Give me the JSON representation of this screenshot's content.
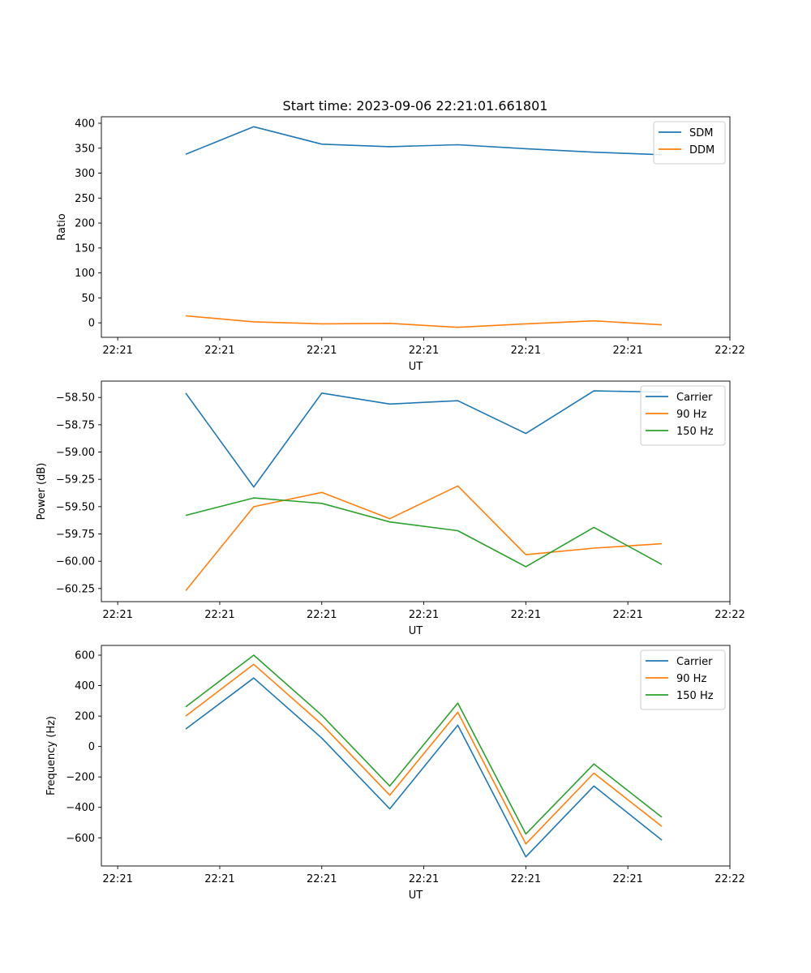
{
  "title": "Start time: 2023-09-06 22:21:01.661801",
  "colors": {
    "blue": "#1f77b4",
    "orange": "#ff7f0e",
    "green": "#2ca02c"
  },
  "chart_data": [
    {
      "type": "line",
      "ylabel": "Ratio",
      "xlabel": "UT",
      "x": [
        0.5,
        1.0,
        1.5,
        2.0,
        2.5,
        3.0,
        3.5,
        4.0
      ],
      "xlim": [
        -0.12,
        4.5
      ],
      "xticks": [
        0,
        0.75,
        1.5,
        2.25,
        3.0,
        3.75,
        4.5
      ],
      "xtick_labels": [
        "22:21",
        "22:21",
        "22:21",
        "22:21",
        "22:21",
        "22:21",
        "22:22"
      ],
      "ylim": [
        -29,
        413
      ],
      "yticks": [
        0,
        50,
        100,
        150,
        200,
        250,
        300,
        350,
        400
      ],
      "ytick_labels": [
        "0",
        "50",
        "100",
        "150",
        "200",
        "250",
        "300",
        "350",
        "400"
      ],
      "legend_position": "top-right",
      "series": [
        {
          "name": "SDM",
          "color": "#1f77b4",
          "values": [
            338,
            393,
            358,
            353,
            357,
            349,
            342,
            337
          ]
        },
        {
          "name": "DDM",
          "color": "#ff7f0e",
          "values": [
            14,
            2,
            -2,
            -1,
            -9,
            -2,
            4,
            -4
          ]
        }
      ]
    },
    {
      "type": "line",
      "ylabel": "Power (dB)",
      "xlabel": "UT",
      "x": [
        0.5,
        1.0,
        1.5,
        2.0,
        2.5,
        3.0,
        3.5,
        4.0
      ],
      "xlim": [
        -0.12,
        4.5
      ],
      "xticks": [
        0,
        0.75,
        1.5,
        2.25,
        3.0,
        3.75,
        4.5
      ],
      "xtick_labels": [
        "22:21",
        "22:21",
        "22:21",
        "22:21",
        "22:21",
        "22:21",
        "22:22"
      ],
      "ylim": [
        -60.37,
        -58.35
      ],
      "yticks": [
        -58.5,
        -58.75,
        -59.0,
        -59.25,
        -59.5,
        -59.75,
        -60.0,
        -60.25
      ],
      "ytick_labels": [
        "−58.50",
        "−58.75",
        "−59.00",
        "−59.25",
        "−59.50",
        "−59.75",
        "−60.00",
        "−60.25"
      ],
      "legend_position": "top-right",
      "series": [
        {
          "name": "Carrier",
          "color": "#1f77b4",
          "values": [
            -58.46,
            -59.32,
            -58.46,
            -58.56,
            -58.53,
            -58.83,
            -58.44,
            -58.45
          ]
        },
        {
          "name": "90 Hz",
          "color": "#ff7f0e",
          "values": [
            -60.27,
            -59.5,
            -59.37,
            -59.61,
            -59.31,
            -59.94,
            -59.88,
            -59.84
          ]
        },
        {
          "name": "150 Hz",
          "color": "#2ca02c",
          "values": [
            -59.58,
            -59.42,
            -59.47,
            -59.64,
            -59.72,
            -60.05,
            -59.69,
            -60.03
          ]
        }
      ]
    },
    {
      "type": "line",
      "ylabel": "Frequency (Hz)",
      "xlabel": "UT",
      "x": [
        0.5,
        1.0,
        1.5,
        2.0,
        2.5,
        3.0,
        3.5,
        4.0
      ],
      "xlim": [
        -0.12,
        4.5
      ],
      "xticks": [
        0,
        0.75,
        1.5,
        2.25,
        3.0,
        3.75,
        4.5
      ],
      "xtick_labels": [
        "22:21",
        "22:21",
        "22:21",
        "22:21",
        "22:21",
        "22:21",
        "22:22"
      ],
      "ylim": [
        -785,
        664
      ],
      "yticks": [
        600,
        400,
        200,
        0,
        -200,
        -400,
        -600
      ],
      "ytick_labels": [
        "600",
        "400",
        "200",
        "0",
        "−200",
        "−400",
        "−600"
      ],
      "legend_position": "top-right",
      "series": [
        {
          "name": "Carrier",
          "color": "#1f77b4",
          "values": [
            115,
            450,
            55,
            -410,
            140,
            -725,
            -260,
            -615
          ]
        },
        {
          "name": "90 Hz",
          "color": "#ff7f0e",
          "values": [
            200,
            540,
            145,
            -320,
            225,
            -640,
            -175,
            -525
          ]
        },
        {
          "name": "150 Hz",
          "color": "#2ca02c",
          "values": [
            260,
            600,
            205,
            -260,
            285,
            -575,
            -115,
            -465
          ]
        }
      ]
    }
  ]
}
